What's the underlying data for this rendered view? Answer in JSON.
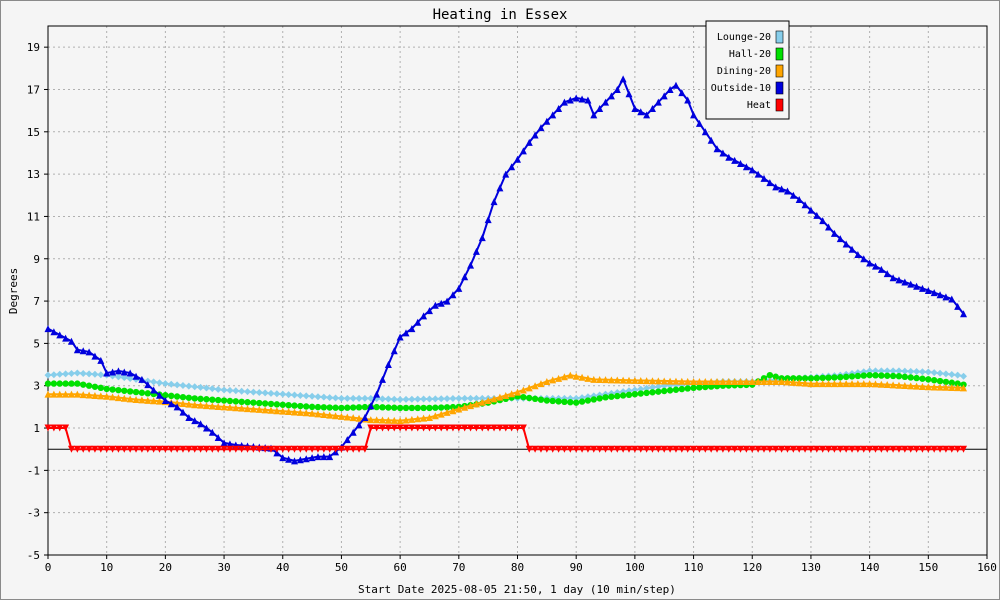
{
  "chart_data": {
    "type": "line",
    "title": "Heating in Essex",
    "xlabel": "Start Date 2025-08-05 21:50, 1 day (10 min/step)",
    "ylabel": "Degrees",
    "xlim": [
      0,
      160
    ],
    "ylim": [
      -5,
      20
    ],
    "x_ticks": [
      0,
      10,
      20,
      30,
      40,
      50,
      60,
      70,
      80,
      90,
      100,
      110,
      120,
      130,
      140,
      150,
      160
    ],
    "y_ticks": [
      -5,
      -3,
      -1,
      1,
      3,
      5,
      7,
      9,
      11,
      13,
      15,
      17,
      19
    ],
    "grid": true,
    "zero_line": 0,
    "legend_position": "top-right",
    "series": [
      {
        "name": "Lounge-20",
        "color": "#87ceeb",
        "marker": "diamond",
        "points": [
          [
            0,
            3.5
          ],
          [
            5,
            3.6
          ],
          [
            10,
            3.5
          ],
          [
            15,
            3.3
          ],
          [
            20,
            3.1
          ],
          [
            25,
            2.95
          ],
          [
            30,
            2.8
          ],
          [
            35,
            2.7
          ],
          [
            40,
            2.6
          ],
          [
            45,
            2.5
          ],
          [
            50,
            2.4
          ],
          [
            55,
            2.4
          ],
          [
            60,
            2.35
          ],
          [
            70,
            2.4
          ],
          [
            80,
            2.4
          ],
          [
            90,
            2.4
          ],
          [
            95,
            2.6
          ],
          [
            100,
            2.8
          ],
          [
            105,
            3.0
          ],
          [
            110,
            3.1
          ],
          [
            115,
            3.2
          ],
          [
            120,
            3.2
          ],
          [
            125,
            3.3
          ],
          [
            130,
            3.4
          ],
          [
            135,
            3.5
          ],
          [
            140,
            3.7
          ],
          [
            145,
            3.7
          ],
          [
            150,
            3.65
          ],
          [
            155,
            3.5
          ],
          [
            156,
            3.45
          ]
        ]
      },
      {
        "name": "Hall-20",
        "color": "#00e000",
        "marker": "circle",
        "points": [
          [
            0,
            3.1
          ],
          [
            5,
            3.1
          ],
          [
            10,
            2.85
          ],
          [
            15,
            2.7
          ],
          [
            20,
            2.55
          ],
          [
            25,
            2.4
          ],
          [
            30,
            2.3
          ],
          [
            35,
            2.2
          ],
          [
            40,
            2.1
          ],
          [
            45,
            2.0
          ],
          [
            50,
            1.95
          ],
          [
            55,
            2.0
          ],
          [
            60,
            1.95
          ],
          [
            65,
            1.95
          ],
          [
            70,
            2.0
          ],
          [
            75,
            2.2
          ],
          [
            80,
            2.5
          ],
          [
            85,
            2.3
          ],
          [
            90,
            2.2
          ],
          [
            95,
            2.45
          ],
          [
            100,
            2.6
          ],
          [
            105,
            2.75
          ],
          [
            110,
            2.9
          ],
          [
            115,
            3.0
          ],
          [
            120,
            3.05
          ],
          [
            123,
            3.5
          ],
          [
            125,
            3.35
          ],
          [
            130,
            3.35
          ],
          [
            135,
            3.4
          ],
          [
            140,
            3.5
          ],
          [
            145,
            3.45
          ],
          [
            150,
            3.3
          ],
          [
            155,
            3.1
          ],
          [
            156,
            3.05
          ]
        ]
      },
      {
        "name": "Dining-20",
        "color": "#ffa500",
        "marker": "triangle",
        "points": [
          [
            0,
            2.6
          ],
          [
            5,
            2.6
          ],
          [
            10,
            2.5
          ],
          [
            15,
            2.35
          ],
          [
            20,
            2.25
          ],
          [
            25,
            2.1
          ],
          [
            30,
            2.0
          ],
          [
            35,
            1.9
          ],
          [
            40,
            1.8
          ],
          [
            45,
            1.7
          ],
          [
            50,
            1.55
          ],
          [
            55,
            1.4
          ],
          [
            60,
            1.35
          ],
          [
            65,
            1.5
          ],
          [
            70,
            1.9
          ],
          [
            75,
            2.3
          ],
          [
            80,
            2.7
          ],
          [
            85,
            3.2
          ],
          [
            89,
            3.5
          ],
          [
            93,
            3.3
          ],
          [
            100,
            3.25
          ],
          [
            110,
            3.2
          ],
          [
            120,
            3.2
          ],
          [
            125,
            3.2
          ],
          [
            130,
            3.1
          ],
          [
            140,
            3.1
          ],
          [
            150,
            2.95
          ],
          [
            156,
            2.9
          ]
        ]
      },
      {
        "name": "Outside-10",
        "color": "#0000dd",
        "marker": "triangle",
        "points": [
          [
            0,
            5.7
          ],
          [
            2,
            5.4
          ],
          [
            4,
            5.1
          ],
          [
            5,
            4.7
          ],
          [
            7,
            4.6
          ],
          [
            9,
            4.2
          ],
          [
            10,
            3.6
          ],
          [
            12,
            3.7
          ],
          [
            14,
            3.6
          ],
          [
            16,
            3.3
          ],
          [
            18,
            2.8
          ],
          [
            20,
            2.3
          ],
          [
            22,
            2.0
          ],
          [
            24,
            1.5
          ],
          [
            26,
            1.2
          ],
          [
            28,
            0.8
          ],
          [
            30,
            0.3
          ],
          [
            32,
            0.2
          ],
          [
            34,
            0.15
          ],
          [
            36,
            0.1
          ],
          [
            38,
            0.05
          ],
          [
            40,
            -0.4
          ],
          [
            42,
            -0.55
          ],
          [
            44,
            -0.45
          ],
          [
            46,
            -0.35
          ],
          [
            48,
            -0.35
          ],
          [
            50,
            0.1
          ],
          [
            52,
            0.8
          ],
          [
            54,
            1.5
          ],
          [
            56,
            2.6
          ],
          [
            58,
            4.0
          ],
          [
            60,
            5.3
          ],
          [
            62,
            5.7
          ],
          [
            64,
            6.3
          ],
          [
            66,
            6.8
          ],
          [
            68,
            7.0
          ],
          [
            70,
            7.6
          ],
          [
            72,
            8.7
          ],
          [
            74,
            10.0
          ],
          [
            76,
            11.7
          ],
          [
            78,
            13.0
          ],
          [
            80,
            13.7
          ],
          [
            82,
            14.5
          ],
          [
            84,
            15.2
          ],
          [
            86,
            15.8
          ],
          [
            88,
            16.4
          ],
          [
            90,
            16.6
          ],
          [
            92,
            16.5
          ],
          [
            93,
            15.8
          ],
          [
            95,
            16.4
          ],
          [
            97,
            17.0
          ],
          [
            98,
            17.5
          ],
          [
            100,
            16.1
          ],
          [
            102,
            15.8
          ],
          [
            104,
            16.4
          ],
          [
            106,
            17.0
          ],
          [
            107,
            17.2
          ],
          [
            109,
            16.5
          ],
          [
            110,
            15.8
          ],
          [
            112,
            15.0
          ],
          [
            114,
            14.2
          ],
          [
            116,
            13.8
          ],
          [
            118,
            13.5
          ],
          [
            120,
            13.2
          ],
          [
            122,
            12.8
          ],
          [
            124,
            12.4
          ],
          [
            126,
            12.2
          ],
          [
            128,
            11.8
          ],
          [
            130,
            11.3
          ],
          [
            132,
            10.8
          ],
          [
            134,
            10.2
          ],
          [
            136,
            9.7
          ],
          [
            138,
            9.2
          ],
          [
            140,
            8.8
          ],
          [
            142,
            8.5
          ],
          [
            144,
            8.1
          ],
          [
            146,
            7.9
          ],
          [
            148,
            7.7
          ],
          [
            150,
            7.5
          ],
          [
            152,
            7.3
          ],
          [
            154,
            7.1
          ],
          [
            156,
            6.4
          ]
        ]
      },
      {
        "name": "Heat",
        "color": "#ff0000",
        "marker": "triangle-down",
        "points": [
          [
            0,
            1
          ],
          [
            3,
            1
          ],
          [
            4,
            0
          ],
          [
            54,
            0
          ],
          [
            55,
            1
          ],
          [
            81,
            1
          ],
          [
            82,
            0
          ],
          [
            156,
            0
          ]
        ]
      }
    ]
  }
}
